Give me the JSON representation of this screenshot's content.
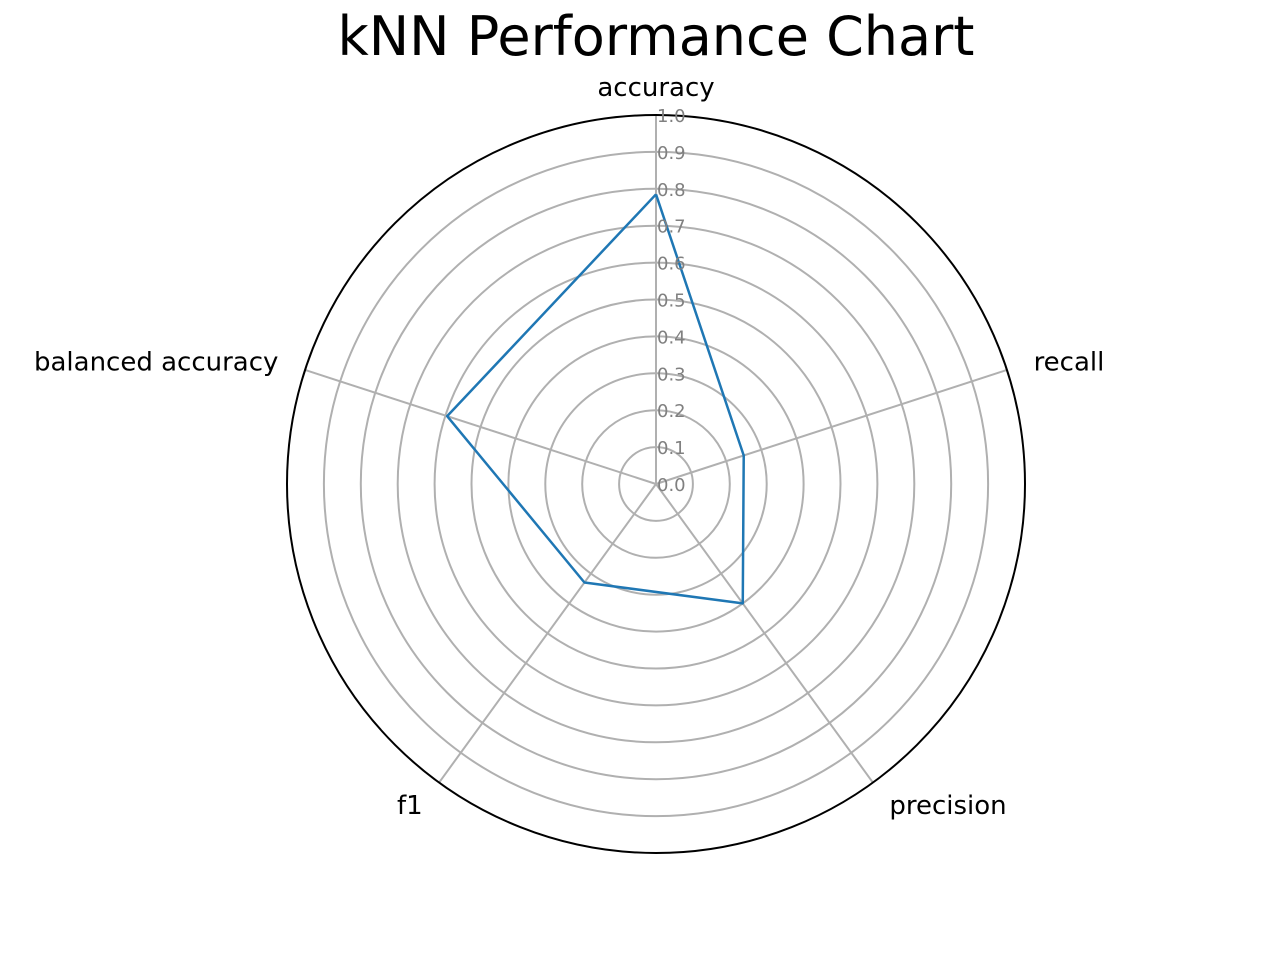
{
  "chart_data": {
    "type": "radar",
    "title": "kNN Performance Chart",
    "categories": [
      "accuracy",
      "recall",
      "precision",
      "f1",
      "balanced accuracy"
    ],
    "series": [
      {
        "values": [
          0.785,
          0.25,
          0.4,
          0.33,
          0.595
        ]
      }
    ],
    "rlim": [
      0,
      1.0
    ],
    "rticks": [
      "0.0",
      "0.1",
      "0.2",
      "0.3",
      "0.4",
      "0.5",
      "0.6",
      "0.7",
      "0.8",
      "0.9",
      "1.0"
    ],
    "grid": true,
    "legend": false,
    "colors": {
      "series": "#1f77b4",
      "grid": "#b0b0b0",
      "frame": "#000000",
      "tick": "#808080"
    }
  }
}
